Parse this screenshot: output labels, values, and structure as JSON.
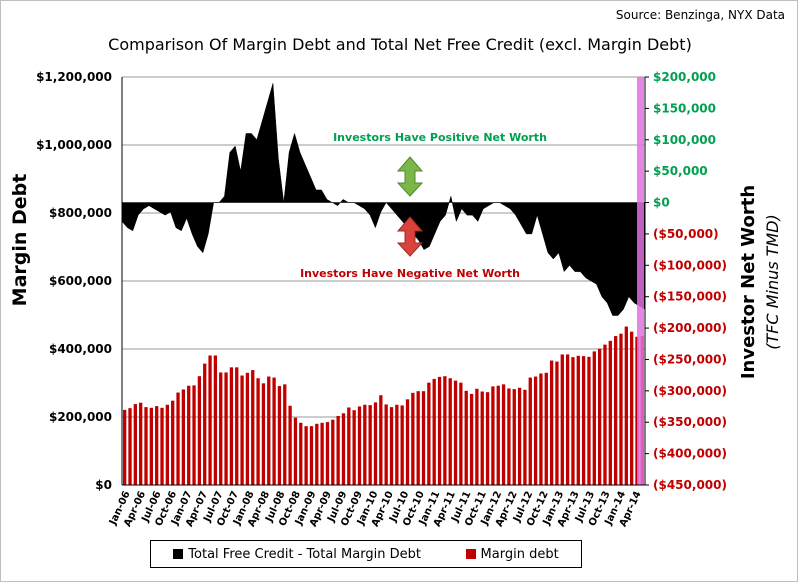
{
  "header": {
    "source": "Source: Benzinga, NYX Data",
    "title": "Comparison  Of Margin Debt and Total Net Free Credit (excl. Margin Debt)"
  },
  "colors": {
    "net_worth": "#000000",
    "margin_debt": "#c00000",
    "positive_annotation": "#00a050",
    "negative_annotation": "#c00000",
    "right_axis_positive": "#00a050",
    "right_axis_negative": "#c00000",
    "highlight_band": "#e070e0"
  },
  "chart_data": {
    "type": "bar",
    "ylabel": "Margin Debt",
    "y2label": "Investor Net Worth",
    "y2label_sub": "(TFC Minus TMD)",
    "ylim": [
      0,
      1200000
    ],
    "y2lim": [
      -450000,
      200000
    ],
    "left_ticks": [
      "$0",
      "$200,000",
      "$400,000",
      "$600,000",
      "$800,000",
      "$1,000,000",
      "$1,200,000"
    ],
    "right_ticks": [
      "($450,000)",
      "($400,000)",
      "($350,000)",
      "($300,000)",
      "($250,000)",
      "($200,000)",
      "($150,000)",
      "($100,000)",
      "($50,000)",
      "$0",
      "$50,000",
      "$100,000",
      "$150,000",
      "$200,000"
    ],
    "x_tick_labels": [
      "Jan-06",
      "Apr-06",
      "Jul-06",
      "Oct-06",
      "Jan-07",
      "Apr-07",
      "Jul-07",
      "Oct-07",
      "Jan-08",
      "Apr-08",
      "Jul-08",
      "Oct-08",
      "Jan-09",
      "Apr-09",
      "Jul-09",
      "Oct-09",
      "Jan-10",
      "Apr-10",
      "Jul-10",
      "Oct-10",
      "Jan-11",
      "Apr-11",
      "Jul-11",
      "Oct-11",
      "Jan-12",
      "Apr-12",
      "Jul-12",
      "Oct-12",
      "Jan-13",
      "Apr-13",
      "Jul-13",
      "Oct-13",
      "Jan-14",
      "Apr-14"
    ],
    "grid": "horizontal",
    "series": [
      {
        "name": "Total Free Credit - Total Margin Debt",
        "type": "area",
        "axis": "right",
        "values": [
          -30000,
          -40000,
          -45000,
          -20000,
          -10000,
          -5000,
          -10000,
          -15000,
          -20000,
          -15000,
          -40000,
          -45000,
          -25000,
          -50000,
          -70000,
          -80000,
          -50000,
          0,
          0,
          10000,
          80000,
          90000,
          50000,
          110000,
          110000,
          100000,
          130000,
          160000,
          190000,
          70000,
          0,
          80000,
          110000,
          80000,
          60000,
          40000,
          20000,
          20000,
          5000,
          0,
          -5000,
          5000,
          0,
          0,
          -5000,
          -10000,
          -20000,
          -40000,
          -15000,
          0,
          -10000,
          -20000,
          -30000,
          -40000,
          -50000,
          -60000,
          -75000,
          -70000,
          -50000,
          -30000,
          -20000,
          10000,
          -30000,
          -10000,
          -20000,
          -20000,
          -30000,
          -10000,
          -5000,
          0,
          0,
          -5000,
          -10000,
          -20000,
          -35000,
          -50000,
          -50000,
          -20000,
          -50000,
          -80000,
          -90000,
          -80000,
          -110000,
          -100000,
          -110000,
          -110000,
          -120000,
          -125000,
          -130000,
          -150000,
          -160000,
          -180000,
          -180000,
          -170000,
          -150000,
          -160000,
          -165000,
          -170000
        ]
      },
      {
        "name": "Margin debt",
        "type": "bar",
        "axis": "left",
        "values": [
          221000,
          226000,
          238000,
          242000,
          229000,
          227000,
          232000,
          227000,
          236000,
          248000,
          272000,
          281000,
          292000,
          293000,
          320000,
          357000,
          381000,
          381000,
          331000,
          331000,
          346000,
          346000,
          322000,
          330000,
          338000,
          314000,
          299000,
          319000,
          316000,
          291000,
          296000,
          233000,
          198000,
          183000,
          173000,
          173000,
          180000,
          183000,
          185000,
          192000,
          203000,
          211000,
          228000,
          220000,
          231000,
          236000,
          235000,
          243000,
          264000,
          237000,
          229000,
          236000,
          234000,
          252000,
          271000,
          276000,
          276000,
          301000,
          312000,
          318000,
          320000,
          314000,
          307000,
          301000,
          277000,
          268000,
          283000,
          275000,
          273000,
          290000,
          292000,
          296000,
          284000,
          282000,
          286000,
          280000,
          316000,
          319000,
          328000,
          330000,
          366000,
          363000,
          384000,
          384000,
          376000,
          380000,
          379000,
          377000,
          393000,
          401000,
          413000,
          424000,
          438000,
          445000,
          466000,
          451000,
          436000,
          438000
        ]
      }
    ],
    "annotations": {
      "positive": "Investors Have Positive Net Worth",
      "negative": "Investors Have Negative Net Worth"
    }
  },
  "legend": {
    "net_worth_label": "Total Free Credit - Total Margin Debt",
    "margin_debt_label": "Margin debt"
  }
}
